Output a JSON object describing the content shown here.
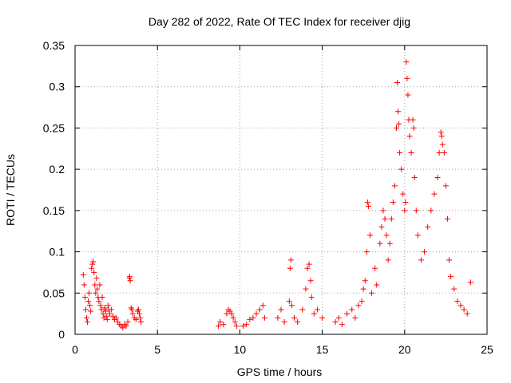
{
  "chart_data": {
    "type": "scatter",
    "title": "Day 282 of 2022, Rate Of TEC Index for receiver djig",
    "xlabel": "GPS time / hours",
    "ylabel": "ROTI / TECUs",
    "xlim": [
      0,
      25
    ],
    "ylim": [
      0,
      0.35
    ],
    "xticks": [
      0,
      5,
      10,
      15,
      20,
      25
    ],
    "xtick_labels": [
      "0",
      "5",
      "10",
      "15",
      "20",
      "25"
    ],
    "yticks": [
      0,
      0.05,
      0.1,
      0.15,
      0.2,
      0.25,
      0.3,
      0.35
    ],
    "ytick_labels": [
      "0",
      "0.05",
      "0.1",
      "0.15",
      "0.2",
      "0.25",
      "0.3",
      "0.35"
    ],
    "grid": true,
    "marker": "+",
    "series": [
      {
        "name": "ROTI",
        "color": "#ff0000",
        "points": [
          [
            0.5,
            0.072
          ],
          [
            0.55,
            0.06
          ],
          [
            0.6,
            0.045
          ],
          [
            0.65,
            0.03
          ],
          [
            0.7,
            0.02
          ],
          [
            0.75,
            0.015
          ],
          [
            0.8,
            0.04
          ],
          [
            0.85,
            0.05
          ],
          [
            0.9,
            0.035
          ],
          [
            0.95,
            0.028
          ],
          [
            1.0,
            0.08
          ],
          [
            1.05,
            0.085
          ],
          [
            1.1,
            0.088
          ],
          [
            1.15,
            0.075
          ],
          [
            1.2,
            0.06
          ],
          [
            1.25,
            0.05
          ],
          [
            1.3,
            0.068
          ],
          [
            1.35,
            0.055
          ],
          [
            1.4,
            0.045
          ],
          [
            1.45,
            0.04
          ],
          [
            1.5,
            0.06
          ],
          [
            1.55,
            0.035
          ],
          [
            1.6,
            0.03
          ],
          [
            1.65,
            0.045
          ],
          [
            1.7,
            0.025
          ],
          [
            1.75,
            0.02
          ],
          [
            1.8,
            0.032
          ],
          [
            1.85,
            0.028
          ],
          [
            1.9,
            0.022
          ],
          [
            1.95,
            0.018
          ],
          [
            2.0,
            0.035
          ],
          [
            2.05,
            0.03
          ],
          [
            2.1,
            0.025
          ],
          [
            2.2,
            0.03
          ],
          [
            2.3,
            0.022
          ],
          [
            2.4,
            0.018
          ],
          [
            2.5,
            0.02
          ],
          [
            2.6,
            0.015
          ],
          [
            2.7,
            0.012
          ],
          [
            2.8,
            0.01
          ],
          [
            2.9,
            0.008
          ],
          [
            3.0,
            0.012
          ],
          [
            3.1,
            0.01
          ],
          [
            3.2,
            0.015
          ],
          [
            3.3,
            0.068
          ],
          [
            3.32,
            0.07
          ],
          [
            3.35,
            0.065
          ],
          [
            3.4,
            0.032
          ],
          [
            3.45,
            0.03
          ],
          [
            3.5,
            0.025
          ],
          [
            3.6,
            0.02
          ],
          [
            3.7,
            0.018
          ],
          [
            3.8,
            0.028
          ],
          [
            3.85,
            0.03
          ],
          [
            3.9,
            0.025
          ],
          [
            3.95,
            0.02
          ],
          [
            4.0,
            0.015
          ],
          [
            8.7,
            0.01
          ],
          [
            8.8,
            0.015
          ],
          [
            9.0,
            0.012
          ],
          [
            9.2,
            0.025
          ],
          [
            9.3,
            0.03
          ],
          [
            9.4,
            0.028
          ],
          [
            9.5,
            0.025
          ],
          [
            9.6,
            0.02
          ],
          [
            9.7,
            0.015
          ],
          [
            9.8,
            0.01
          ],
          [
            10.2,
            0.01
          ],
          [
            10.4,
            0.012
          ],
          [
            10.6,
            0.018
          ],
          [
            10.8,
            0.02
          ],
          [
            11.0,
            0.025
          ],
          [
            11.2,
            0.03
          ],
          [
            11.4,
            0.035
          ],
          [
            11.5,
            0.02
          ],
          [
            12.3,
            0.02
          ],
          [
            12.5,
            0.03
          ],
          [
            12.7,
            0.015
          ],
          [
            13.0,
            0.04
          ],
          [
            13.05,
            0.08
          ],
          [
            13.1,
            0.09
          ],
          [
            13.15,
            0.035
          ],
          [
            13.3,
            0.02
          ],
          [
            13.5,
            0.015
          ],
          [
            13.8,
            0.03
          ],
          [
            14.0,
            0.055
          ],
          [
            14.1,
            0.08
          ],
          [
            14.2,
            0.085
          ],
          [
            14.3,
            0.065
          ],
          [
            14.35,
            0.045
          ],
          [
            14.5,
            0.025
          ],
          [
            14.7,
            0.03
          ],
          [
            15.0,
            0.02
          ],
          [
            15.8,
            0.015
          ],
          [
            16.0,
            0.02
          ],
          [
            16.2,
            0.012
          ],
          [
            16.5,
            0.025
          ],
          [
            16.8,
            0.03
          ],
          [
            17.0,
            0.02
          ],
          [
            17.2,
            0.035
          ],
          [
            17.4,
            0.04
          ],
          [
            17.5,
            0.055
          ],
          [
            17.6,
            0.065
          ],
          [
            17.7,
            0.1
          ],
          [
            17.75,
            0.16
          ],
          [
            17.8,
            0.155
          ],
          [
            17.9,
            0.12
          ],
          [
            18.0,
            0.05
          ],
          [
            18.2,
            0.08
          ],
          [
            18.3,
            0.06
          ],
          [
            18.5,
            0.11
          ],
          [
            18.6,
            0.13
          ],
          [
            18.7,
            0.15
          ],
          [
            18.8,
            0.14
          ],
          [
            18.9,
            0.12
          ],
          [
            19.0,
            0.09
          ],
          [
            19.1,
            0.11
          ],
          [
            19.2,
            0.14
          ],
          [
            19.3,
            0.16
          ],
          [
            19.4,
            0.18
          ],
          [
            19.5,
            0.25
          ],
          [
            19.55,
            0.305
          ],
          [
            19.6,
            0.27
          ],
          [
            19.65,
            0.255
          ],
          [
            19.7,
            0.22
          ],
          [
            19.8,
            0.2
          ],
          [
            19.9,
            0.17
          ],
          [
            20.0,
            0.15
          ],
          [
            20.05,
            0.16
          ],
          [
            20.1,
            0.33
          ],
          [
            20.15,
            0.31
          ],
          [
            20.2,
            0.29
          ],
          [
            20.25,
            0.26
          ],
          [
            20.3,
            0.24
          ],
          [
            20.4,
            0.22
          ],
          [
            20.5,
            0.26
          ],
          [
            20.55,
            0.25
          ],
          [
            20.6,
            0.19
          ],
          [
            20.7,
            0.15
          ],
          [
            20.8,
            0.12
          ],
          [
            21.0,
            0.09
          ],
          [
            21.2,
            0.1
          ],
          [
            21.4,
            0.13
          ],
          [
            21.6,
            0.15
          ],
          [
            21.8,
            0.17
          ],
          [
            22.0,
            0.19
          ],
          [
            22.1,
            0.22
          ],
          [
            22.2,
            0.245
          ],
          [
            22.25,
            0.24
          ],
          [
            22.3,
            0.23
          ],
          [
            22.4,
            0.22
          ],
          [
            22.5,
            0.18
          ],
          [
            22.6,
            0.14
          ],
          [
            22.7,
            0.09
          ],
          [
            22.8,
            0.07
          ],
          [
            23.0,
            0.055
          ],
          [
            23.2,
            0.04
          ],
          [
            23.4,
            0.035
          ],
          [
            23.6,
            0.03
          ],
          [
            23.8,
            0.025
          ],
          [
            24.0,
            0.063
          ]
        ]
      }
    ]
  }
}
